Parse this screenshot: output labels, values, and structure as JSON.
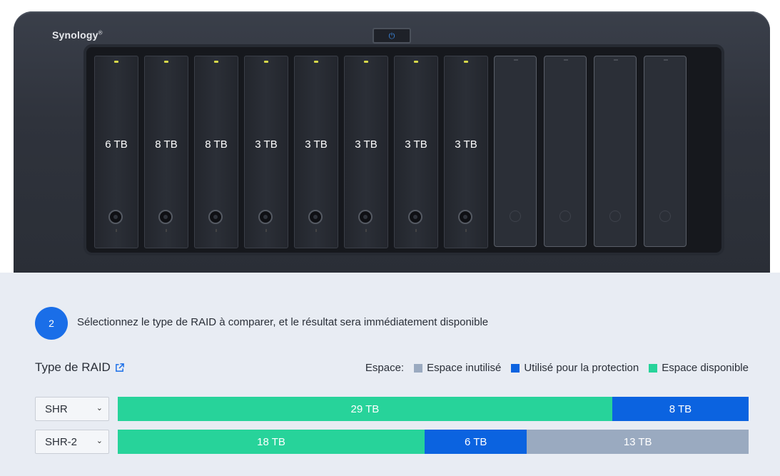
{
  "device": {
    "brand": "Synology",
    "brand_mark": "®",
    "drives": [
      "6 TB",
      "8 TB",
      "8 TB",
      "3 TB",
      "3 TB",
      "3 TB",
      "3 TB",
      "3 TB"
    ],
    "empty_bays": 4
  },
  "step": {
    "number": "2",
    "text": "Sélectionnez le type de RAID à comparer, et le résultat sera immédiatement disponible"
  },
  "raid": {
    "title": "Type de RAID",
    "legend_label": "Espace:",
    "legend": [
      {
        "label": "Espace inutilisé",
        "color": "#9aaac0"
      },
      {
        "label": "Utilisé pour la protection",
        "color": "#0b63e0"
      },
      {
        "label": "Espace disponible",
        "color": "#27d39a"
      }
    ],
    "rows": [
      {
        "type": "SHR",
        "segments": [
          {
            "kind": "available",
            "label": "29 TB",
            "value": 29,
            "color": "#27d39a"
          },
          {
            "kind": "protection",
            "label": "8 TB",
            "value": 8,
            "color": "#0b63e0"
          }
        ]
      },
      {
        "type": "SHR-2",
        "segments": [
          {
            "kind": "available",
            "label": "18 TB",
            "value": 18,
            "color": "#27d39a"
          },
          {
            "kind": "protection",
            "label": "6 TB",
            "value": 6,
            "color": "#0b63e0"
          },
          {
            "kind": "unused",
            "label": "13 TB",
            "value": 13,
            "color": "#9aaac0"
          }
        ]
      }
    ]
  }
}
